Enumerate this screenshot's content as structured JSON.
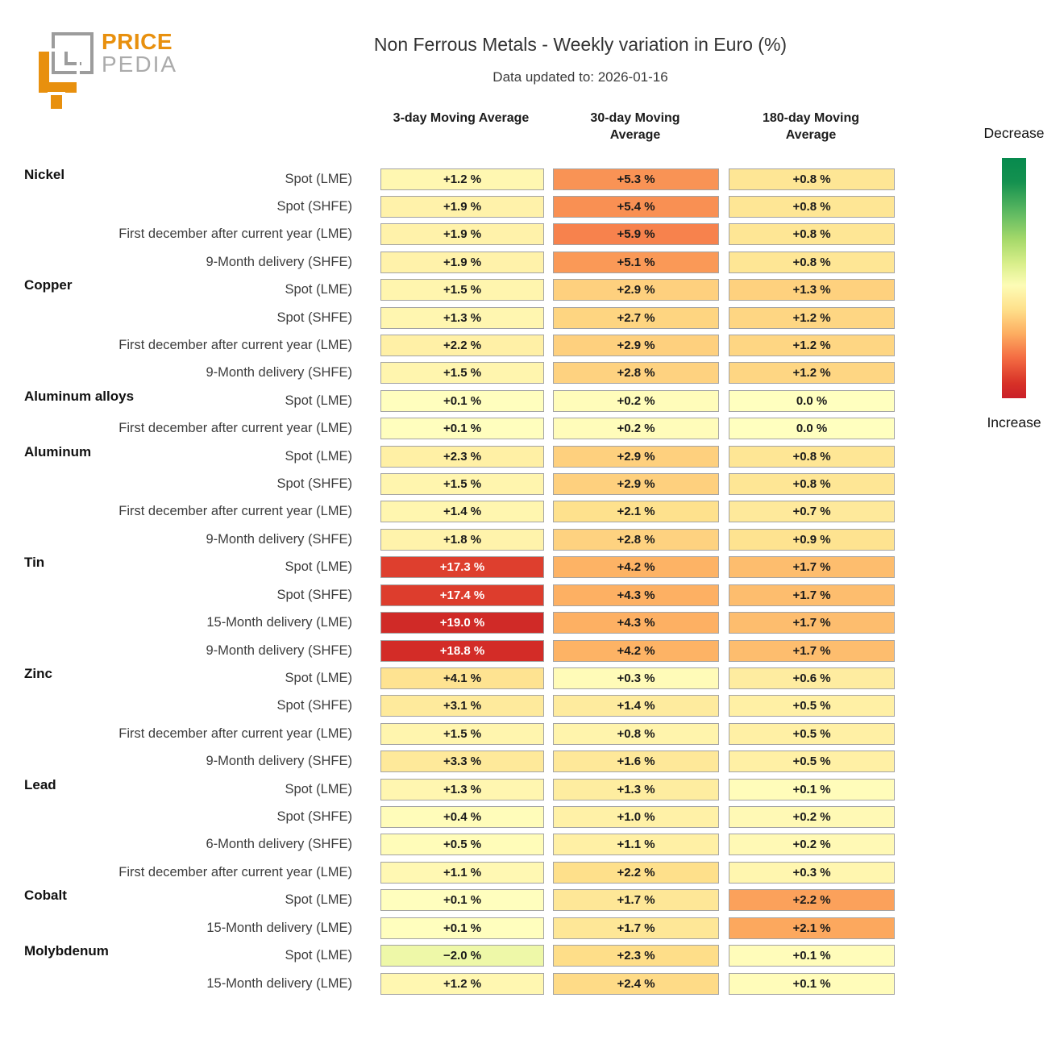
{
  "header": {
    "logo_line1": "PRICE",
    "logo_line2": "PEDIA",
    "brand_orange": "#e8900e",
    "brand_gray": "#ababab"
  },
  "legend": {
    "top_label": "Decrease",
    "bottom_label": "Increase"
  },
  "chart_data": {
    "type": "heatmap",
    "title": "Non Ferrous Metals - Weekly variation in Euro (%)",
    "subtitle": "Data updated to: 2026-01-16",
    "unit": "%",
    "columns": [
      "3-day Moving Average",
      "30-day Moving Average",
      "180-day Moving Average"
    ],
    "colormap": "RdYlGn reversed (green = decrease, red = increase), normalized per column",
    "legend_top": "Decrease",
    "legend_bottom": "Increase",
    "rows": [
      {
        "group": "Nickel",
        "label": "Spot (LME)",
        "values": [
          1.2,
          5.3,
          0.8
        ]
      },
      {
        "group": null,
        "label": "Spot (SHFE)",
        "values": [
          1.9,
          5.4,
          0.8
        ]
      },
      {
        "group": null,
        "label": "First december after current year (LME)",
        "values": [
          1.9,
          5.9,
          0.8
        ]
      },
      {
        "group": null,
        "label": "9-Month delivery (SHFE)",
        "values": [
          1.9,
          5.1,
          0.8
        ]
      },
      {
        "group": "Copper",
        "label": "Spot (LME)",
        "values": [
          1.5,
          2.9,
          1.3
        ]
      },
      {
        "group": null,
        "label": "Spot (SHFE)",
        "values": [
          1.3,
          2.7,
          1.2
        ]
      },
      {
        "group": null,
        "label": "First december after current year (LME)",
        "values": [
          2.2,
          2.9,
          1.2
        ]
      },
      {
        "group": null,
        "label": "9-Month delivery (SHFE)",
        "values": [
          1.5,
          2.8,
          1.2
        ]
      },
      {
        "group": "Aluminum alloys",
        "label": "Spot (LME)",
        "values": [
          0.1,
          0.2,
          0.0
        ]
      },
      {
        "group": null,
        "label": "First december after current year (LME)",
        "values": [
          0.1,
          0.2,
          0.0
        ]
      },
      {
        "group": "Aluminum",
        "label": "Spot (LME)",
        "values": [
          2.3,
          2.9,
          0.8
        ]
      },
      {
        "group": null,
        "label": "Spot (SHFE)",
        "values": [
          1.5,
          2.9,
          0.8
        ]
      },
      {
        "group": null,
        "label": "First december after current year (LME)",
        "values": [
          1.4,
          2.1,
          0.7
        ]
      },
      {
        "group": null,
        "label": "9-Month delivery (SHFE)",
        "values": [
          1.8,
          2.8,
          0.9
        ]
      },
      {
        "group": "Tin",
        "label": "Spot (LME)",
        "values": [
          17.3,
          4.2,
          1.7
        ]
      },
      {
        "group": null,
        "label": "Spot (SHFE)",
        "values": [
          17.4,
          4.3,
          1.7
        ]
      },
      {
        "group": null,
        "label": "15-Month delivery (LME)",
        "values": [
          19.0,
          4.3,
          1.7
        ]
      },
      {
        "group": null,
        "label": "9-Month delivery (SHFE)",
        "values": [
          18.8,
          4.2,
          1.7
        ]
      },
      {
        "group": "Zinc",
        "label": "Spot (LME)",
        "values": [
          4.1,
          0.3,
          0.6
        ]
      },
      {
        "group": null,
        "label": "Spot (SHFE)",
        "values": [
          3.1,
          1.4,
          0.5
        ]
      },
      {
        "group": null,
        "label": "First december after current year (LME)",
        "values": [
          1.5,
          0.8,
          0.5
        ]
      },
      {
        "group": null,
        "label": "9-Month delivery (SHFE)",
        "values": [
          3.3,
          1.6,
          0.5
        ]
      },
      {
        "group": "Lead",
        "label": "Spot (LME)",
        "values": [
          1.3,
          1.3,
          0.1
        ]
      },
      {
        "group": null,
        "label": "Spot (SHFE)",
        "values": [
          0.4,
          1.0,
          0.2
        ]
      },
      {
        "group": null,
        "label": "6-Month delivery (SHFE)",
        "values": [
          0.5,
          1.1,
          0.2
        ]
      },
      {
        "group": null,
        "label": "First december after current year (LME)",
        "values": [
          1.1,
          2.2,
          0.3
        ]
      },
      {
        "group": "Cobalt",
        "label": "Spot (LME)",
        "values": [
          0.1,
          1.7,
          2.2
        ]
      },
      {
        "group": null,
        "label": "15-Month delivery (LME)",
        "values": [
          0.1,
          1.7,
          2.1
        ]
      },
      {
        "group": "Molybdenum",
        "label": "Spot (LME)",
        "values": [
          -2.0,
          2.3,
          0.1
        ]
      },
      {
        "group": null,
        "label": "15-Month delivery (LME)",
        "values": [
          1.2,
          2.4,
          0.1
        ]
      }
    ]
  }
}
